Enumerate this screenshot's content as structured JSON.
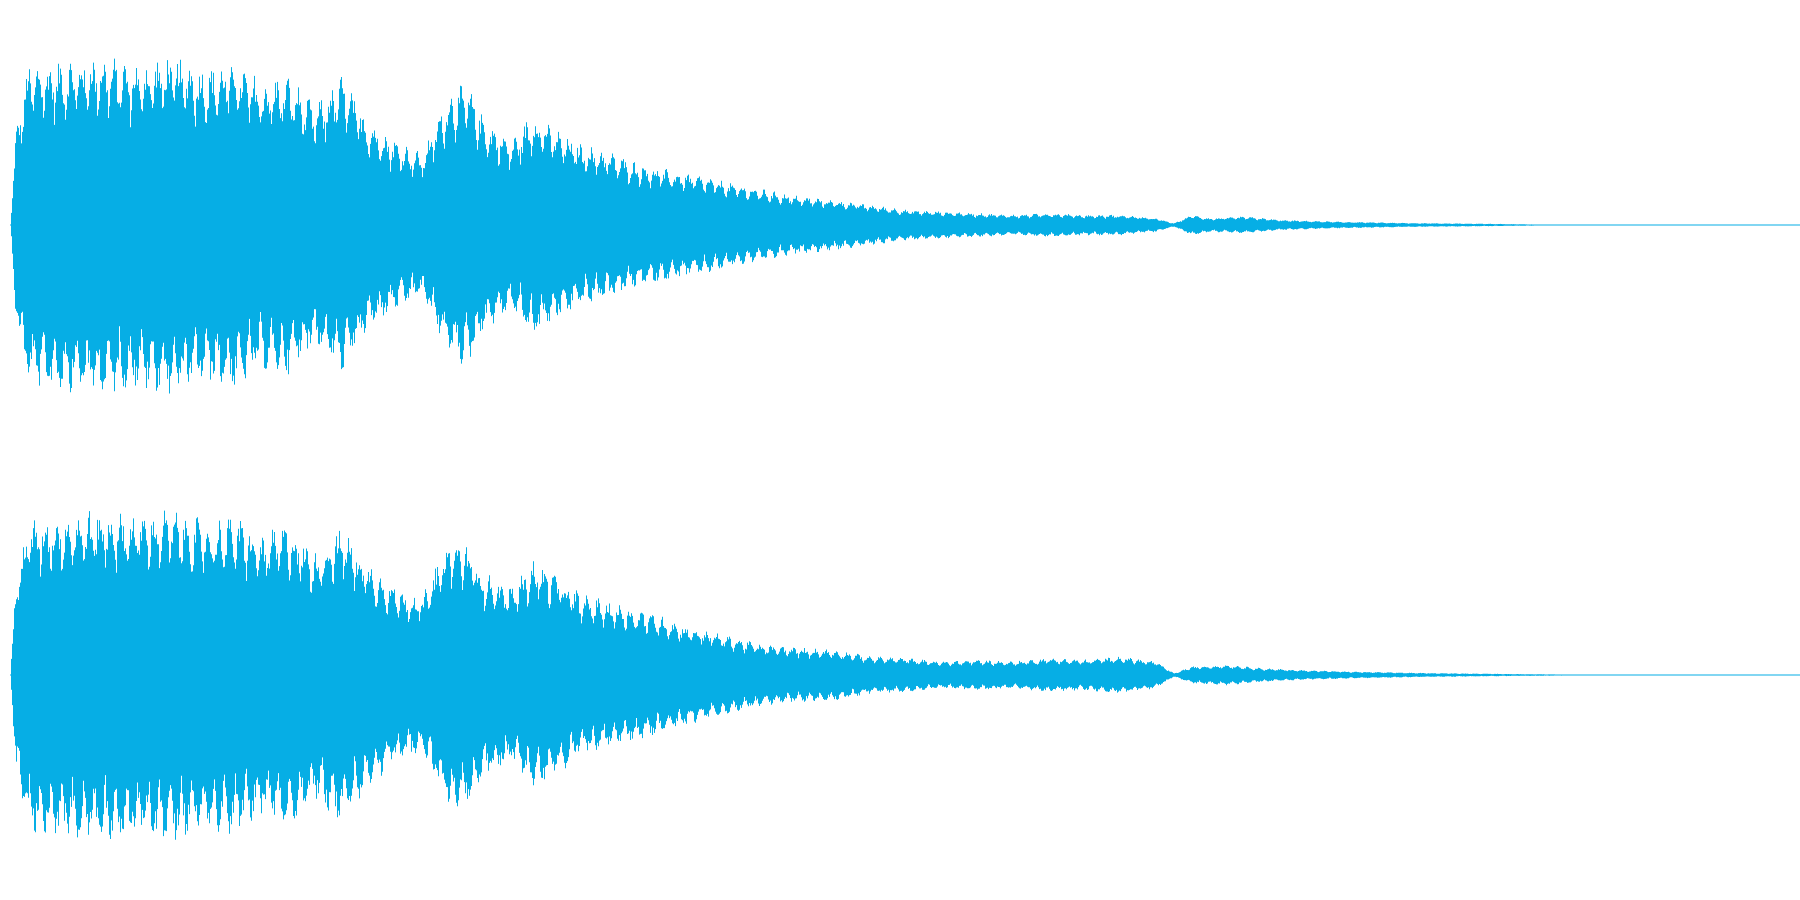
{
  "waveform": {
    "color": "#06AEE5",
    "background": "#FFFFFF",
    "channel_count": 2,
    "channels": [
      {
        "name": "",
        "envelope": [
          [
            0.0,
            0.0
          ],
          [
            0.003,
            0.55
          ],
          [
            0.01,
            0.95
          ],
          [
            0.03,
            0.97
          ],
          [
            0.05,
            1.0
          ],
          [
            0.07,
            0.95
          ],
          [
            0.09,
            1.0
          ],
          [
            0.11,
            0.92
          ],
          [
            0.125,
            0.97
          ],
          [
            0.14,
            0.85
          ],
          [
            0.155,
            0.88
          ],
          [
            0.17,
            0.7
          ],
          [
            0.185,
            0.88
          ],
          [
            0.2,
            0.62
          ],
          [
            0.215,
            0.5
          ],
          [
            0.23,
            0.42
          ],
          [
            0.245,
            0.78
          ],
          [
            0.255,
            0.83
          ],
          [
            0.265,
            0.62
          ],
          [
            0.28,
            0.5
          ],
          [
            0.292,
            0.66
          ],
          [
            0.305,
            0.56
          ],
          [
            0.318,
            0.48
          ],
          [
            0.332,
            0.44
          ],
          [
            0.346,
            0.38
          ],
          [
            0.36,
            0.34
          ],
          [
            0.375,
            0.31
          ],
          [
            0.39,
            0.28
          ],
          [
            0.405,
            0.24
          ],
          [
            0.42,
            0.21
          ],
          [
            0.44,
            0.17
          ],
          [
            0.46,
            0.15
          ],
          [
            0.48,
            0.12
          ],
          [
            0.5,
            0.09
          ],
          [
            0.52,
            0.08
          ],
          [
            0.54,
            0.07
          ],
          [
            0.56,
            0.06
          ],
          [
            0.58,
            0.07
          ],
          [
            0.6,
            0.06
          ],
          [
            0.62,
            0.06
          ],
          [
            0.64,
            0.04
          ],
          [
            0.65,
            0.01
          ],
          [
            0.66,
            0.06
          ],
          [
            0.67,
            0.04
          ],
          [
            0.69,
            0.05
          ],
          [
            0.71,
            0.03
          ],
          [
            0.74,
            0.02
          ],
          [
            0.78,
            0.012
          ],
          [
            0.82,
            0.008
          ],
          [
            0.85,
            0.004
          ],
          [
            0.86,
            0.0
          ],
          [
            1.0,
            0.0
          ]
        ]
      },
      {
        "name": "",
        "envelope": [
          [
            0.0,
            0.0
          ],
          [
            0.003,
            0.55
          ],
          [
            0.01,
            0.92
          ],
          [
            0.03,
            0.95
          ],
          [
            0.05,
            0.97
          ],
          [
            0.07,
            0.95
          ],
          [
            0.09,
            0.97
          ],
          [
            0.11,
            0.9
          ],
          [
            0.125,
            0.94
          ],
          [
            0.14,
            0.82
          ],
          [
            0.155,
            0.9
          ],
          [
            0.17,
            0.72
          ],
          [
            0.185,
            0.88
          ],
          [
            0.2,
            0.66
          ],
          [
            0.215,
            0.52
          ],
          [
            0.23,
            0.46
          ],
          [
            0.245,
            0.8
          ],
          [
            0.255,
            0.78
          ],
          [
            0.265,
            0.6
          ],
          [
            0.28,
            0.52
          ],
          [
            0.292,
            0.68
          ],
          [
            0.305,
            0.6
          ],
          [
            0.318,
            0.48
          ],
          [
            0.332,
            0.44
          ],
          [
            0.346,
            0.4
          ],
          [
            0.36,
            0.36
          ],
          [
            0.375,
            0.3
          ],
          [
            0.39,
            0.26
          ],
          [
            0.405,
            0.22
          ],
          [
            0.42,
            0.18
          ],
          [
            0.44,
            0.16
          ],
          [
            0.46,
            0.15
          ],
          [
            0.48,
            0.11
          ],
          [
            0.5,
            0.1
          ],
          [
            0.52,
            0.08
          ],
          [
            0.54,
            0.09
          ],
          [
            0.56,
            0.08
          ],
          [
            0.58,
            0.1
          ],
          [
            0.6,
            0.09
          ],
          [
            0.62,
            0.11
          ],
          [
            0.64,
            0.08
          ],
          [
            0.65,
            0.01
          ],
          [
            0.66,
            0.05
          ],
          [
            0.68,
            0.06
          ],
          [
            0.7,
            0.04
          ],
          [
            0.72,
            0.03
          ],
          [
            0.75,
            0.02
          ],
          [
            0.79,
            0.012
          ],
          [
            0.84,
            0.006
          ],
          [
            0.88,
            0.002
          ],
          [
            0.89,
            0.0
          ],
          [
            1.0,
            0.0
          ]
        ]
      }
    ]
  }
}
